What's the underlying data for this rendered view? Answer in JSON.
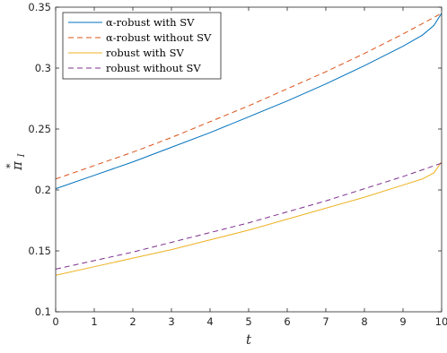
{
  "chart_data": {
    "type": "line",
    "xlabel": "t",
    "ylabel": {
      "base": "π",
      "sup": "*",
      "sub": "I"
    },
    "xlim": [
      0,
      10
    ],
    "ylim": [
      0.1,
      0.35
    ],
    "xticks": [
      "0",
      "1",
      "2",
      "3",
      "4",
      "5",
      "6",
      "7",
      "8",
      "9",
      "10"
    ],
    "yticks": [
      "0.1",
      "0.15",
      "0.2",
      "0.25",
      "0.3",
      "0.35"
    ],
    "grid": false,
    "legend_position": "top-left",
    "series": [
      {
        "name": "α-robust with SV",
        "color": "#0072BD",
        "dash": "solid",
        "x": [
          0,
          1,
          2,
          3,
          4,
          5,
          6,
          7,
          8,
          9,
          9.5,
          9.8,
          10
        ],
        "y": [
          0.201,
          0.212,
          0.223,
          0.235,
          0.247,
          0.26,
          0.273,
          0.287,
          0.302,
          0.318,
          0.327,
          0.335,
          0.345
        ]
      },
      {
        "name": "α-robust without SV",
        "color": "#D95319",
        "dash": "dashed",
        "x": [
          0,
          1,
          2,
          3,
          4,
          5,
          6,
          7,
          8,
          9,
          10
        ],
        "y": [
          0.209,
          0.22,
          0.231,
          0.243,
          0.256,
          0.269,
          0.283,
          0.297,
          0.312,
          0.328,
          0.345
        ]
      },
      {
        "name": "robust with SV",
        "color": "#EDB120",
        "dash": "solid",
        "x": [
          0,
          1,
          2,
          3,
          4,
          5,
          6,
          7,
          8,
          9,
          9.5,
          9.8,
          10
        ],
        "y": [
          0.13,
          0.137,
          0.144,
          0.151,
          0.159,
          0.167,
          0.176,
          0.185,
          0.194,
          0.204,
          0.209,
          0.214,
          0.223
        ]
      },
      {
        "name": "robust without SV",
        "color": "#7E2F8E",
        "dash": "dashed",
        "x": [
          0,
          1,
          2,
          3,
          4,
          5,
          6,
          7,
          8,
          9,
          10
        ],
        "y": [
          0.135,
          0.142,
          0.149,
          0.157,
          0.165,
          0.173,
          0.182,
          0.191,
          0.201,
          0.211,
          0.222
        ]
      }
    ]
  }
}
